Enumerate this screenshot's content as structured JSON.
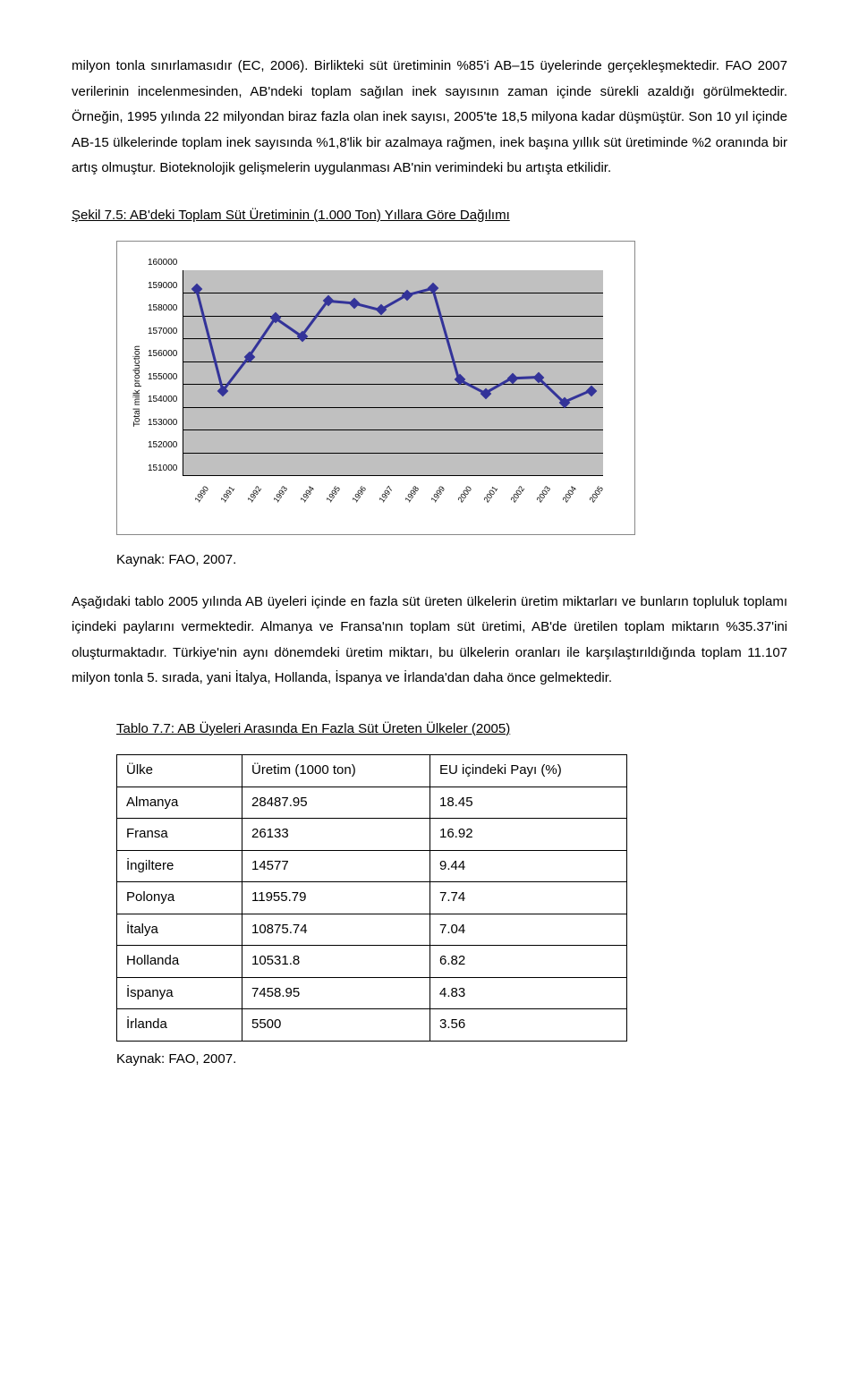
{
  "paragraphs": {
    "p1": "milyon tonla sınırlamasıdır (EC, 2006). Birlikteki süt üretiminin %85'i AB–15 üyelerinde gerçekleşmektedir. FAO 2007 verilerinin incelenmesinden, AB'ndeki toplam sağılan inek sayısının zaman içinde sürekli azaldığı görülmektedir. Örneğin, 1995 yılında 22 milyondan biraz fazla olan inek sayısı, 2005'te 18,5 milyona kadar düşmüştür. Son 10 yıl içinde AB-15 ülkelerinde toplam inek sayısında %1,8'lik bir azalmaya rağmen, inek başına yıllık süt üretiminde %2 oranında bir artış olmuştur. Bioteknolojik gelişmelerin uygulanması AB'nin verimindeki bu artışta etkilidir.",
    "p2": "Aşağıdaki tablo 2005 yılında AB üyeleri içinde en fazla süt üreten ülkelerin üretim miktarları ve bunların topluluk toplamı içindeki paylarını vermektedir. Almanya ve Fransa'nın toplam süt üretimi, AB'de üretilen toplam miktarın %35.37'ini oluşturmaktadır. Türkiye'nin aynı dönemdeki üretim miktarı, bu ülkelerin oranları ile karşılaştırıldığında toplam 11.107 milyon tonla 5. sırada, yani İtalya, Hollanda, İspanya ve İrlanda'dan daha önce gelmektedir."
  },
  "chart": {
    "title": "Şekil 7.5: AB'deki Toplam Süt Üretiminin (1.000 Ton) Yıllara Göre Dağılımı",
    "y_label": "Total milk production",
    "ymin": 151000,
    "ymax": 160000,
    "ystep": 1000,
    "yticks": [
      "160000",
      "159000",
      "158000",
      "157000",
      "156000",
      "155000",
      "154000",
      "153000",
      "152000",
      "151000"
    ],
    "categories": [
      "1990",
      "1991",
      "1992",
      "1993",
      "1994",
      "1995",
      "1996",
      "1997",
      "1998",
      "1999",
      "2000",
      "2001",
      "2002",
      "2003",
      "2004",
      "2005"
    ],
    "values": [
      159150,
      154700,
      156200,
      157900,
      157100,
      158650,
      158550,
      158250,
      158900,
      159200,
      155200,
      154600,
      155250,
      155300,
      154200,
      154700
    ],
    "line_color": "#333399",
    "marker_color": "#333399",
    "plot_bg": "#c0c0c0",
    "grid_color": "#000000",
    "source": "Kaynak: FAO, 2007."
  },
  "table": {
    "title": "Tablo 7.7: AB Üyeleri Arasında En Fazla Süt Üreten Ülkeler (2005)",
    "columns": [
      "Ülke",
      "Üretim (1000 ton)",
      "EU içindeki Payı (%)"
    ],
    "rows": [
      [
        "Almanya",
        "28487.95",
        "18.45"
      ],
      [
        "Fransa",
        "26133",
        "16.92"
      ],
      [
        "İngiltere",
        "14577",
        "9.44"
      ],
      [
        "Polonya",
        "11955.79",
        "7.74"
      ],
      [
        "İtalya",
        "10875.74",
        "7.04"
      ],
      [
        "Hollanda",
        "10531.8",
        "6.82"
      ],
      [
        "İspanya",
        "7458.95",
        "4.83"
      ],
      [
        "İrlanda",
        "5500",
        "3.56"
      ]
    ],
    "source": "Kaynak: FAO, 2007."
  }
}
